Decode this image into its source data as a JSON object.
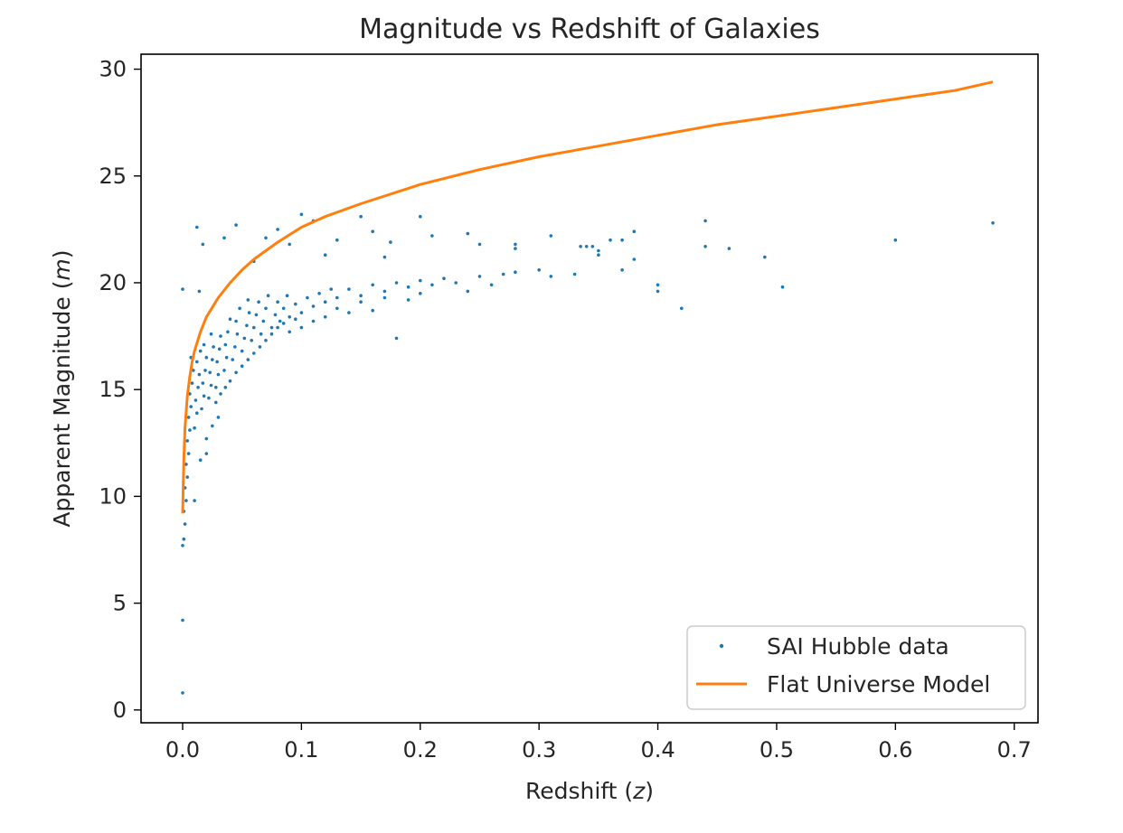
{
  "chart_data": {
    "type": "scatter",
    "title": "Magnitude vs Redshift of Galaxies",
    "xlabel": {
      "text": "Redshift (",
      "symbol": "z",
      "suffix": ")"
    },
    "ylabel": {
      "text": "Apparent Magnitude (",
      "symbol": "m",
      "suffix": ")"
    },
    "xlim": [
      -0.035,
      0.72
    ],
    "ylim": [
      -0.6,
      30.7
    ],
    "xticks": [
      0.0,
      0.1,
      0.2,
      0.3,
      0.4,
      0.5,
      0.6,
      0.7
    ],
    "xtick_labels": [
      "0.0",
      "0.1",
      "0.2",
      "0.3",
      "0.4",
      "0.5",
      "0.6",
      "0.7"
    ],
    "yticks": [
      0,
      5,
      10,
      15,
      20,
      25,
      30
    ],
    "ytick_labels": [
      "0",
      "5",
      "10",
      "15",
      "20",
      "25",
      "30"
    ],
    "grid": false,
    "legend_position": "bottom-right",
    "series": [
      {
        "name": "SAI Hubble data",
        "kind": "scatter",
        "color": "#1f77b4",
        "points": [
          [
            0.0,
            0.8
          ],
          [
            0.0,
            4.2
          ],
          [
            0.0,
            7.7
          ],
          [
            0.001,
            8.0
          ],
          [
            0.002,
            8.7
          ],
          [
            0.001,
            9.3
          ],
          [
            0.003,
            9.8
          ],
          [
            0.002,
            10.4
          ],
          [
            0.004,
            10.9
          ],
          [
            0.003,
            11.5
          ],
          [
            0.005,
            12.0
          ],
          [
            0.004,
            12.6
          ],
          [
            0.006,
            13.1
          ],
          [
            0.005,
            13.7
          ],
          [
            0.007,
            14.2
          ],
          [
            0.006,
            14.8
          ],
          [
            0.008,
            15.3
          ],
          [
            0.009,
            15.9
          ],
          [
            0.007,
            16.5
          ],
          [
            0.01,
            13.2
          ],
          [
            0.012,
            13.9
          ],
          [
            0.011,
            14.5
          ],
          [
            0.013,
            15.1
          ],
          [
            0.014,
            15.7
          ],
          [
            0.012,
            16.3
          ],
          [
            0.015,
            16.8
          ],
          [
            0.016,
            14.1
          ],
          [
            0.018,
            14.7
          ],
          [
            0.017,
            15.3
          ],
          [
            0.019,
            15.9
          ],
          [
            0.02,
            16.5
          ],
          [
            0.018,
            17.1
          ],
          [
            0.022,
            14.6
          ],
          [
            0.024,
            15.2
          ],
          [
            0.023,
            15.8
          ],
          [
            0.025,
            16.4
          ],
          [
            0.026,
            17.0
          ],
          [
            0.024,
            17.6
          ],
          [
            0.028,
            15.1
          ],
          [
            0.03,
            15.7
          ],
          [
            0.029,
            16.3
          ],
          [
            0.031,
            16.9
          ],
          [
            0.032,
            17.5
          ],
          [
            0.035,
            15.9
          ],
          [
            0.037,
            16.5
          ],
          [
            0.036,
            17.1
          ],
          [
            0.038,
            17.7
          ],
          [
            0.04,
            18.3
          ],
          [
            0.042,
            16.4
          ],
          [
            0.044,
            17.0
          ],
          [
            0.046,
            17.6
          ],
          [
            0.045,
            18.2
          ],
          [
            0.048,
            18.8
          ],
          [
            0.05,
            16.8
          ],
          [
            0.052,
            17.4
          ],
          [
            0.054,
            18.0
          ],
          [
            0.056,
            18.6
          ],
          [
            0.055,
            19.2
          ],
          [
            0.058,
            17.3
          ],
          [
            0.06,
            17.9
          ],
          [
            0.062,
            18.5
          ],
          [
            0.064,
            19.1
          ],
          [
            0.066,
            17.6
          ],
          [
            0.068,
            18.2
          ],
          [
            0.07,
            18.8
          ],
          [
            0.072,
            19.4
          ],
          [
            0.075,
            17.9
          ],
          [
            0.078,
            18.5
          ],
          [
            0.08,
            19.1
          ],
          [
            0.082,
            18.2
          ],
          [
            0.085,
            18.8
          ],
          [
            0.088,
            19.4
          ],
          [
            0.09,
            18.4
          ],
          [
            0.095,
            19.0
          ],
          [
            0.1,
            18.6
          ],
          [
            0.105,
            19.3
          ],
          [
            0.11,
            18.9
          ],
          [
            0.115,
            19.5
          ],
          [
            0.12,
            19.1
          ],
          [
            0.125,
            19.7
          ],
          [
            0.13,
            19.3
          ],
          [
            0.14,
            19.7
          ],
          [
            0.15,
            19.4
          ],
          [
            0.16,
            19.9
          ],
          [
            0.17,
            19.6
          ],
          [
            0.18,
            20.0
          ],
          [
            0.19,
            19.8
          ],
          [
            0.2,
            20.1
          ],
          [
            0.21,
            19.9
          ],
          [
            0.22,
            20.2
          ],
          [
            0.23,
            20.0
          ],
          [
            0.24,
            19.6
          ],
          [
            0.25,
            20.3
          ],
          [
            0.26,
            19.9
          ],
          [
            0.27,
            20.4
          ],
          [
            0.28,
            20.5
          ],
          [
            0.3,
            20.6
          ],
          [
            0.31,
            20.3
          ],
          [
            0.33,
            20.4
          ],
          [
            0.34,
            21.7
          ],
          [
            0.35,
            21.3
          ],
          [
            0.37,
            20.6
          ],
          [
            0.38,
            21.1
          ],
          [
            0.4,
            19.9
          ],
          [
            0.4,
            19.6
          ],
          [
            0.42,
            18.8
          ],
          [
            0.01,
            9.8
          ],
          [
            0.015,
            11.7
          ],
          [
            0.02,
            12.0
          ],
          [
            0.014,
            19.6
          ],
          [
            0.017,
            21.8
          ],
          [
            0.0,
            19.7
          ],
          [
            0.012,
            22.6
          ],
          [
            0.035,
            22.1
          ],
          [
            0.045,
            22.7
          ],
          [
            0.06,
            21.0
          ],
          [
            0.07,
            22.1
          ],
          [
            0.08,
            22.5
          ],
          [
            0.09,
            21.8
          ],
          [
            0.1,
            23.2
          ],
          [
            0.11,
            22.9
          ],
          [
            0.12,
            21.3
          ],
          [
            0.13,
            22.0
          ],
          [
            0.15,
            23.1
          ],
          [
            0.16,
            22.4
          ],
          [
            0.17,
            21.2
          ],
          [
            0.175,
            21.9
          ],
          [
            0.2,
            23.1
          ],
          [
            0.21,
            22.2
          ],
          [
            0.24,
            22.3
          ],
          [
            0.25,
            21.8
          ],
          [
            0.28,
            21.6
          ],
          [
            0.28,
            21.8
          ],
          [
            0.31,
            22.2
          ],
          [
            0.335,
            21.7
          ],
          [
            0.345,
            21.7
          ],
          [
            0.35,
            21.5
          ],
          [
            0.36,
            22.0
          ],
          [
            0.37,
            22.0
          ],
          [
            0.38,
            22.4
          ],
          [
            0.44,
            22.9
          ],
          [
            0.44,
            21.7
          ],
          [
            0.46,
            21.6
          ],
          [
            0.49,
            21.2
          ],
          [
            0.505,
            19.8
          ],
          [
            0.6,
            22.0
          ],
          [
            0.682,
            22.8
          ],
          [
            0.03,
            13.7
          ],
          [
            0.025,
            13.3
          ],
          [
            0.02,
            12.7
          ],
          [
            0.028,
            14.4
          ],
          [
            0.032,
            14.8
          ],
          [
            0.036,
            15.1
          ],
          [
            0.04,
            15.4
          ],
          [
            0.045,
            15.8
          ],
          [
            0.05,
            16.1
          ],
          [
            0.055,
            16.4
          ],
          [
            0.06,
            16.7
          ],
          [
            0.065,
            17.0
          ],
          [
            0.07,
            17.3
          ],
          [
            0.075,
            17.6
          ],
          [
            0.08,
            17.9
          ],
          [
            0.085,
            18.1
          ],
          [
            0.09,
            17.7
          ],
          [
            0.095,
            18.3
          ],
          [
            0.1,
            17.9
          ],
          [
            0.11,
            18.2
          ],
          [
            0.12,
            18.4
          ],
          [
            0.13,
            18.8
          ],
          [
            0.14,
            18.6
          ],
          [
            0.15,
            19.1
          ],
          [
            0.16,
            18.7
          ],
          [
            0.17,
            19.3
          ],
          [
            0.18,
            17.4
          ],
          [
            0.19,
            19.2
          ],
          [
            0.2,
            19.5
          ]
        ]
      },
      {
        "name": "Flat Universe Model",
        "kind": "line",
        "color": "#ff7f0e",
        "points": [
          [
            0.0,
            9.2
          ],
          [
            0.001,
            11.7
          ],
          [
            0.002,
            13.2
          ],
          [
            0.004,
            14.7
          ],
          [
            0.006,
            15.6
          ],
          [
            0.008,
            16.3
          ],
          [
            0.01,
            16.8
          ],
          [
            0.015,
            17.7
          ],
          [
            0.02,
            18.4
          ],
          [
            0.03,
            19.3
          ],
          [
            0.04,
            20.0
          ],
          [
            0.05,
            20.6
          ],
          [
            0.06,
            21.1
          ],
          [
            0.07,
            21.5
          ],
          [
            0.08,
            21.9
          ],
          [
            0.1,
            22.6
          ],
          [
            0.12,
            23.1
          ],
          [
            0.15,
            23.7
          ],
          [
            0.2,
            24.6
          ],
          [
            0.25,
            25.3
          ],
          [
            0.3,
            25.9
          ],
          [
            0.35,
            26.4
          ],
          [
            0.4,
            26.9
          ],
          [
            0.45,
            27.4
          ],
          [
            0.5,
            27.8
          ],
          [
            0.55,
            28.2
          ],
          [
            0.6,
            28.6
          ],
          [
            0.65,
            29.0
          ],
          [
            0.682,
            29.4
          ]
        ]
      }
    ]
  }
}
